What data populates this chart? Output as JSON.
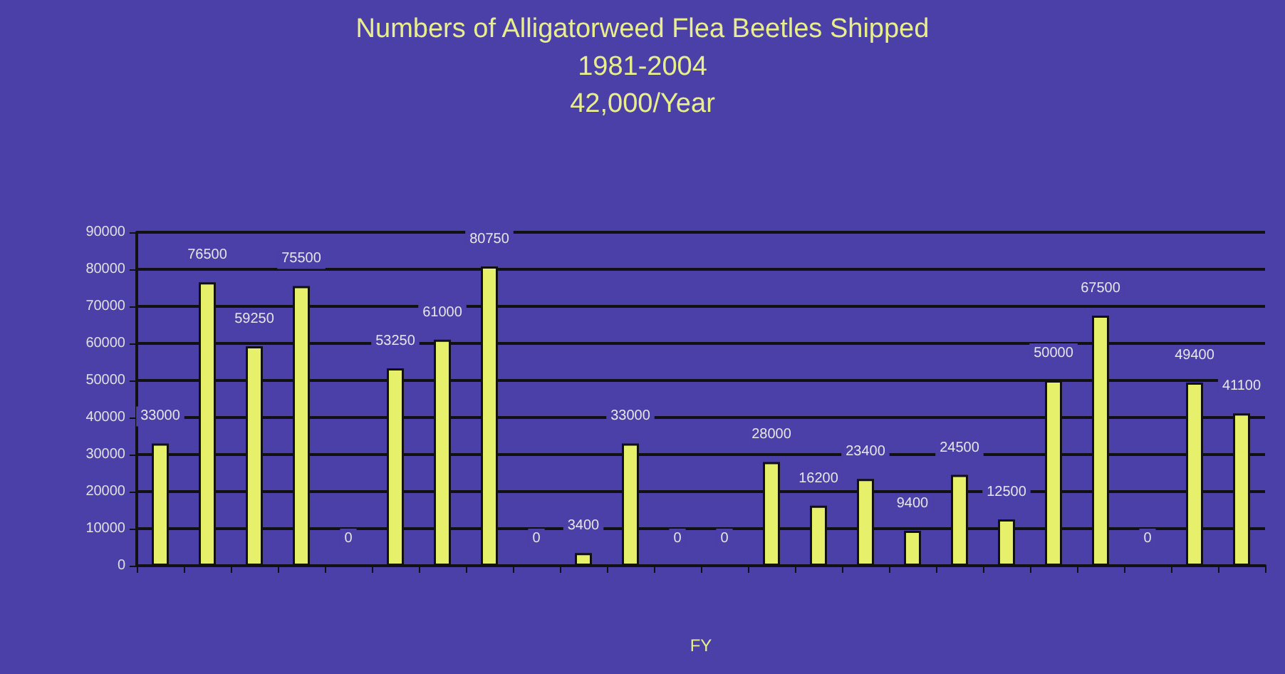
{
  "chart_data": {
    "type": "bar",
    "title": "Numbers of Alligatorweed Flea Beetles Shipped",
    "subtitle": "1981-2004\n42,000/Year",
    "xlabel": "FY",
    "categories": [
      null,
      null,
      null,
      null,
      null,
      null,
      null,
      null,
      null,
      null,
      null,
      null,
      null,
      null,
      null,
      null,
      null,
      null,
      null,
      null,
      null,
      null,
      null,
      null
    ],
    "values": [
      33000,
      76500,
      59250,
      75500,
      0,
      53250,
      61000,
      80750,
      0,
      3400,
      33000,
      0,
      0,
      28000,
      16200,
      23400,
      9400,
      24500,
      12500,
      50000,
      67500,
      0,
      49400,
      41100
    ],
    "color": "#e6f06a",
    "data_labels": true,
    "grid": "y",
    "ylim": [
      0,
      90000
    ],
    "yticks": [
      0,
      10000,
      20000,
      30000,
      40000,
      50000,
      60000,
      70000,
      80000,
      90000
    ]
  }
}
